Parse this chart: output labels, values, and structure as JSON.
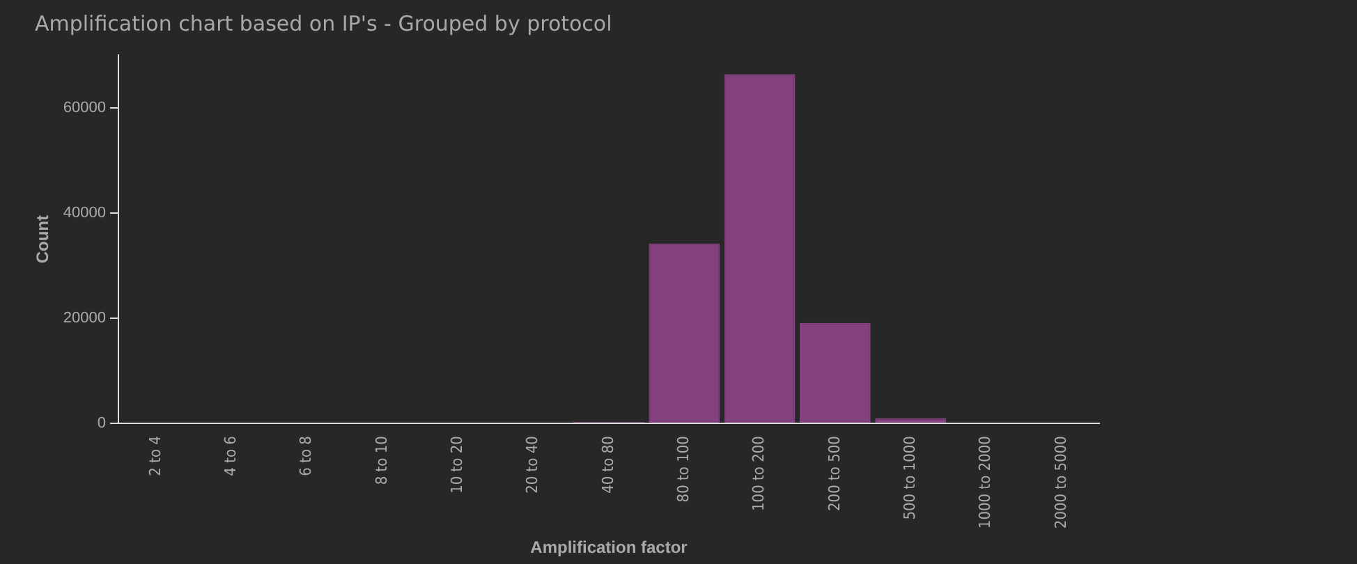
{
  "chart_data": {
    "type": "bar",
    "title": "Amplification chart based on IP's - Grouped by protocol",
    "xlabel": "Amplification factor",
    "ylabel": "Count",
    "categories": [
      "2 to 4",
      "4 to 6",
      "6 to 8",
      "8 to 10",
      "10 to 20",
      "20 to 40",
      "40 to 80",
      "80 to 100",
      "100 to 200",
      "200 to 500",
      "500 to 1000",
      "1000 to 2000",
      "2000 to 5000"
    ],
    "series": [
      {
        "color": "#84417f",
        "values": [
          0,
          0,
          0,
          0,
          0,
          0,
          300,
          34200,
          66400,
          19100,
          1000,
          0,
          0
        ]
      }
    ],
    "ylim": [
      0,
      70000
    ],
    "yticks": [
      0,
      20000,
      40000,
      60000
    ],
    "grid": false,
    "legend": false
  }
}
